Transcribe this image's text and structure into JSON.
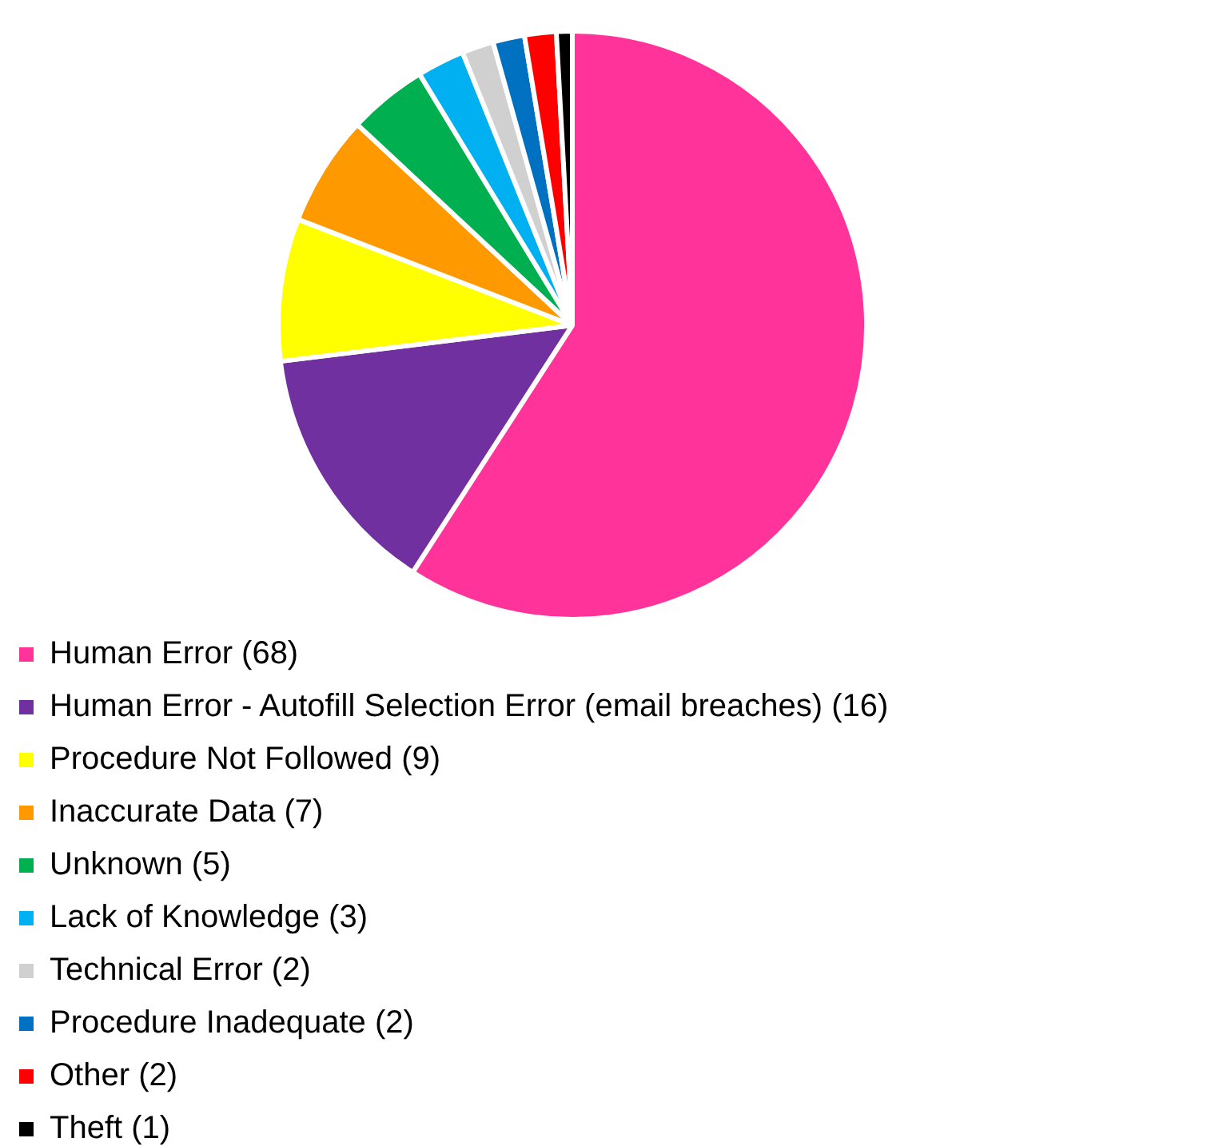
{
  "chart_data": {
    "type": "pie",
    "categories": [
      "Human Error (68)",
      "Human Error - Autofill Selection Error (email breaches) (16)",
      "Procedure Not Followed (9)",
      "Inaccurate Data (7)",
      "Unknown (5)",
      "Lack of Knowledge (3)",
      "Technical Error (2)",
      "Procedure Inadequate (2)",
      "Other (2)",
      "Theft (1)"
    ],
    "values": [
      68,
      16,
      9,
      7,
      5,
      3,
      2,
      2,
      2,
      1
    ],
    "colors": [
      "#ff3399",
      "#7030a0",
      "#ffff00",
      "#ff9900",
      "#00b050",
      "#00b0f0",
      "#d0d0d0",
      "#0070c0",
      "#ff0000",
      "#000000"
    ],
    "legend": "bottom"
  }
}
